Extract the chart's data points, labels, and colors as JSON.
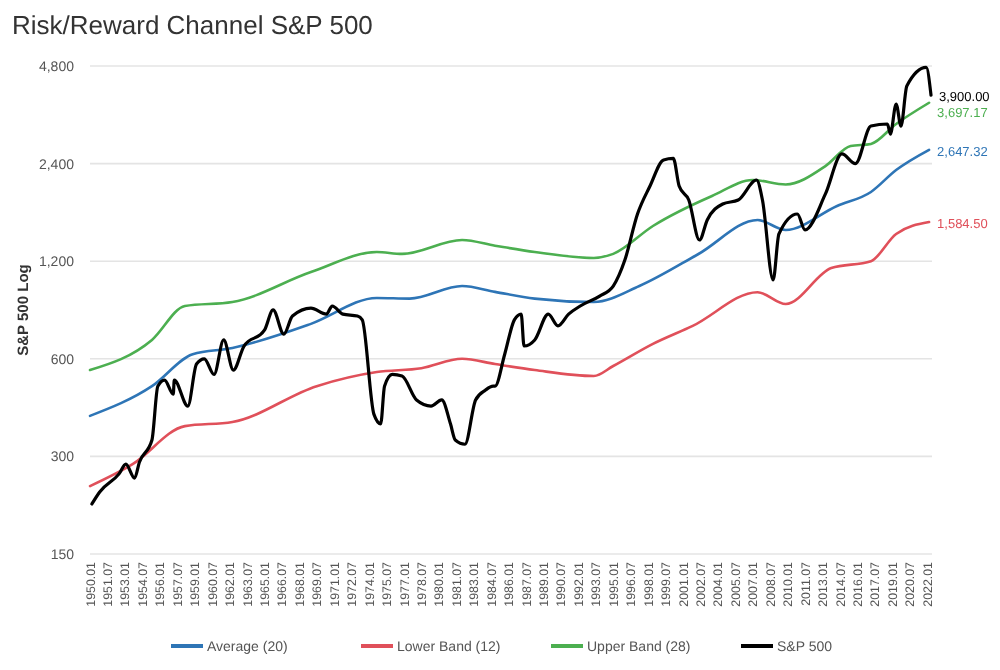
{
  "chart_data": {
    "type": "line",
    "title": "Risk/Reward Channel S&P 500",
    "ylabel": "S&P 500 Log",
    "log": true,
    "grid": "y",
    "legend": "bottom",
    "line_style": "solid",
    "marker": "none",
    "xlim": [
      "1950-01",
      "2022-06"
    ],
    "xticks": [
      {
        "value": "1950-01",
        "label": "1950.01"
      },
      {
        "value": "1951-07",
        "label": "1951.07"
      },
      {
        "value": "1953-01",
        "label": "1953.01"
      },
      {
        "value": "1954-07",
        "label": "1954.07"
      },
      {
        "value": "1956-01",
        "label": "1956.01"
      },
      {
        "value": "1957-07",
        "label": "1957.07"
      },
      {
        "value": "1959-01",
        "label": "1959.01"
      },
      {
        "value": "1960-07",
        "label": "1960.07"
      },
      {
        "value": "1962-01",
        "label": "1962.01"
      },
      {
        "value": "1963-07",
        "label": "1963.07"
      },
      {
        "value": "1965-01",
        "label": "1965.01"
      },
      {
        "value": "1966-07",
        "label": "1966.07"
      },
      {
        "value": "1968-01",
        "label": "1968.01"
      },
      {
        "value": "1969-07",
        "label": "1969.07"
      },
      {
        "value": "1971-01",
        "label": "1971.01"
      },
      {
        "value": "1972-07",
        "label": "1972.07"
      },
      {
        "value": "1974-01",
        "label": "1974.01"
      },
      {
        "value": "1975-07",
        "label": "1975.07"
      },
      {
        "value": "1977-01",
        "label": "1977.01"
      },
      {
        "value": "1978-07",
        "label": "1978.07"
      },
      {
        "value": "1980-01",
        "label": "1980.01"
      },
      {
        "value": "1981-07",
        "label": "1981.07"
      },
      {
        "value": "1983-01",
        "label": "1983.01"
      },
      {
        "value": "1984-07",
        "label": "1984.07"
      },
      {
        "value": "1986-01",
        "label": "1986.01"
      },
      {
        "value": "1987-07",
        "label": "1987.07"
      },
      {
        "value": "1989-01",
        "label": "1989.01"
      },
      {
        "value": "1990-07",
        "label": "1990.07"
      },
      {
        "value": "1992-01",
        "label": "1992.01"
      },
      {
        "value": "1993-07",
        "label": "1993.07"
      },
      {
        "value": "1995-01",
        "label": "1995.01"
      },
      {
        "value": "1996-07",
        "label": "1996.07"
      },
      {
        "value": "1998-01",
        "label": "1998.01"
      },
      {
        "value": "1999-07",
        "label": "1999.07"
      },
      {
        "value": "2001-01",
        "label": "2001.01"
      },
      {
        "value": "2002-07",
        "label": "2002.07"
      },
      {
        "value": "2004-01",
        "label": "2004.01"
      },
      {
        "value": "2005-07",
        "label": "2005.07"
      },
      {
        "value": "2007-01",
        "label": "2007.01"
      },
      {
        "value": "2008-07",
        "label": "2008.07"
      },
      {
        "value": "2010-01",
        "label": "2010.01"
      },
      {
        "value": "2011-07",
        "label": "2011.07"
      },
      {
        "value": "2013-01",
        "label": "2013.01"
      },
      {
        "value": "2014-07",
        "label": "2014.07"
      },
      {
        "value": "2016-01",
        "label": "2016.01"
      },
      {
        "value": "2017-07",
        "label": "2017.07"
      },
      {
        "value": "2019-01",
        "label": "2019.01"
      },
      {
        "value": "2020-07",
        "label": "2020.07"
      },
      {
        "value": "2022-01",
        "label": "2022.01"
      }
    ],
    "ylim": [
      150,
      4800
    ],
    "yticks": [
      150,
      300,
      600,
      {
        "value": 1200,
        "label": "1,200"
      },
      {
        "value": 2400,
        "label": "2,400"
      },
      {
        "value": 4800,
        "label": "4,800"
      }
    ],
    "series": [
      {
        "name": "Average (20)",
        "color": "#2e75b6",
        "x": [
          "1950-01",
          "1955-05",
          "1958-11",
          "1962-04",
          "1969-01",
          "1974-09",
          "1977-07",
          "1982-01",
          "1984-11",
          "1988-04",
          "1993-05",
          "1997-04",
          "2002-05",
          "2007-06",
          "2009-11",
          "2014-04",
          "2017-03",
          "2019-05",
          "2022-03"
        ],
        "values": [
          400,
          494,
          620,
          648,
          769,
          924,
          920,
          1006,
          965,
          920,
          898,
          1006,
          1263,
          1608,
          1498,
          1776,
          1962,
          2293,
          2647.32
        ],
        "value_labels": [
          null,
          null,
          null,
          null,
          null,
          null,
          null,
          null,
          null,
          null,
          null,
          null,
          null,
          null,
          null,
          null,
          null,
          null,
          "2,647.32"
        ]
      },
      {
        "name": "Lower Band (12)",
        "color": "#e0505a",
        "x": [
          "1950-01",
          "1953-09",
          "1958-03",
          "1962-04",
          "1969-07",
          "1974-09",
          "1978-07",
          "1982-01",
          "1984-11",
          "1988-04",
          "1993-05",
          "1995-01",
          "1998-06",
          "2001-11",
          "2007-06",
          "2009-11",
          "2013-10",
          "2017-03",
          "2019-05",
          "2022-03"
        ],
        "values": [
          243,
          284,
          372,
          383,
          494,
          546,
          561,
          600,
          578,
          554,
          531,
          570,
          667,
          758,
          963,
          885,
          1143,
          1200,
          1456,
          1584.5
        ],
        "value_labels": [
          null,
          null,
          null,
          null,
          null,
          null,
          null,
          null,
          null,
          null,
          null,
          null,
          null,
          null,
          null,
          null,
          null,
          null,
          null,
          "1,584.50"
        ]
      },
      {
        "name": "Upper Band (28)",
        "color": "#4caf50",
        "x": [
          "1950-01",
          "1955-05",
          "1958-03",
          "1962-04",
          "1969-01",
          "1974-09",
          "1976-11",
          "1982-01",
          "1984-11",
          "1988-04",
          "1993-05",
          "1995-01",
          "1998-06",
          "2003-07",
          "2007-01",
          "2009-11",
          "2013-04",
          "2015-06",
          "2017-03",
          "2019-05",
          "2022-03"
        ],
        "values": [
          554,
          686,
          873,
          898,
          1111,
          1281,
          1264,
          1395,
          1340,
          1281,
          1228,
          1264,
          1541,
          1907,
          2136,
          2070,
          2358,
          2719,
          2760,
          3180,
          3697.17
        ],
        "value_labels": [
          null,
          null,
          null,
          null,
          null,
          null,
          null,
          null,
          null,
          null,
          null,
          null,
          null,
          null,
          null,
          null,
          null,
          null,
          null,
          null,
          "3,697.17"
        ]
      },
      {
        "name": "S&P 500",
        "color": "#000000",
        "x": [
          "1950-03",
          "1950-11",
          "1952-07",
          "1953-02",
          "1953-11",
          "1954-04",
          "1955-05",
          "1955-11",
          "1956-06",
          "1957-03",
          "1957-04",
          "1958-06",
          "1959-03",
          "1959-11",
          "1960-09",
          "1961-07",
          "1962-05",
          "1963-04",
          "1965-01",
          "1965-10",
          "1966-09",
          "1967-06",
          "1969-01",
          "1970-05",
          "1970-11",
          "1971-10",
          "1973-01",
          "1973-06",
          "1974-06",
          "1975-01",
          "1975-05",
          "1976-01",
          "1976-11",
          "1978-02",
          "1979-05",
          "1980-04",
          "1981-01",
          "1981-06",
          "1982-04",
          "1983-03",
          "1984-01",
          "1984-09",
          "1984-11",
          "1985-09",
          "1986-07",
          "1987-02",
          "1987-05",
          "1988-04",
          "1989-06",
          "1990-04",
          "1991-03",
          "1992-03",
          "1993-11",
          "1995-01",
          "1996-01",
          "1997-02",
          "1998-03",
          "1999-05",
          "2000-03",
          "2000-09",
          "2001-07",
          "2002-06",
          "2003-02",
          "2004-06",
          "2005-10",
          "2007-05",
          "2007-11",
          "2008-10",
          "2009-04",
          "2010-11",
          "2011-07",
          "2013-04",
          "2014-09",
          "2015-11",
          "2017-03",
          "2018-08",
          "2018-11",
          "2019-05",
          "2019-10",
          "2020-04",
          "2021-12",
          "2022-05"
        ],
        "values": [
          214,
          233,
          265,
          284,
          257,
          288,
          337,
          494,
          516,
          467,
          516,
          429,
          578,
          600,
          537,
          686,
          554,
          657,
          735,
          849,
          715,
          813,
          860,
          824,
          873,
          824,
          813,
          791,
          405,
          378,
          494,
          537,
          531,
          448,
          429,
          448,
          378,
          337,
          327,
          448,
          480,
          494,
          494,
          620,
          791,
          824,
          657,
          686,
          824,
          758,
          824,
          873,
          937,
          1006,
          1210,
          1678,
          2047,
          2463,
          2490,
          2047,
          1853,
          1395,
          1608,
          1801,
          1853,
          2136,
          1853,
          1050,
          1456,
          1678,
          1498,
          1935,
          2570,
          2400,
          3134,
          3180,
          2958,
          3665,
          3134,
          4163,
          4750,
          3900
        ],
        "value_labels": [
          null,
          null,
          null,
          null,
          null,
          null,
          null,
          null,
          null,
          null,
          null,
          null,
          null,
          null,
          null,
          null,
          null,
          null,
          null,
          null,
          null,
          null,
          null,
          null,
          null,
          null,
          null,
          null,
          null,
          null,
          null,
          null,
          null,
          null,
          null,
          null,
          null,
          null,
          null,
          null,
          null,
          null,
          null,
          null,
          null,
          null,
          null,
          null,
          null,
          null,
          null,
          null,
          null,
          null,
          null,
          null,
          null,
          null,
          null,
          null,
          null,
          null,
          null,
          null,
          null,
          null,
          null,
          null,
          null,
          null,
          null,
          null,
          null,
          null,
          null,
          null,
          null,
          null,
          null,
          null,
          null,
          "3,900.00"
        ]
      }
    ]
  }
}
